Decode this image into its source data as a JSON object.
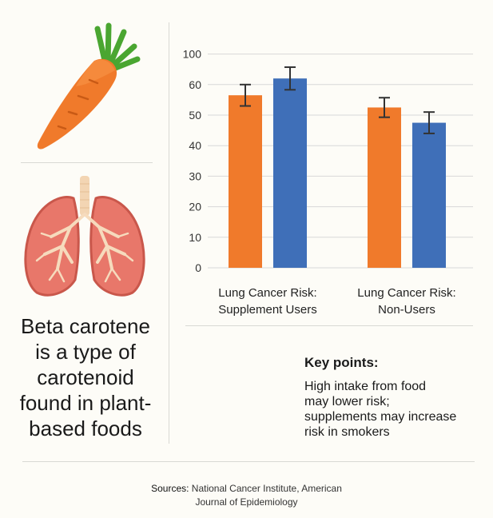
{
  "left_panel": {
    "icons": {
      "top": "carrot-icon",
      "middle": "lungs-icon"
    },
    "description_lines": [
      "Beta carotene",
      "is a type of",
      "carotenoid",
      "found in plant-",
      "based foods"
    ]
  },
  "chart_data": {
    "type": "bar",
    "categories": [
      "Lung Cancer Risk:\nSupplement Users",
      "Lung Cancer Risk:\nNon-Users"
    ],
    "series": [
      {
        "values": [
          56.5,
          52.5
        ],
        "errors": [
          3.5,
          3.2
        ],
        "color": "#f07a2b"
      },
      {
        "values": [
          62,
          47.5
        ],
        "errors": [
          3.7,
          3.5
        ],
        "color": "#3f6fb8"
      }
    ],
    "y_ticks": [
      0,
      10,
      20,
      30,
      40,
      50,
      60,
      100
    ],
    "ylim": [
      0,
      100
    ],
    "grid": true,
    "title": "",
    "xlabel": "",
    "ylabel": ""
  },
  "key_points": {
    "title": "Key points:",
    "body_lines": [
      "High intake from food",
      "may lower risk;",
      "supplements may increase",
      "risk in smokers"
    ]
  },
  "sources": {
    "label": "Sources:",
    "line1": "National Cancer Institute, American",
    "line2": "Journal of Epidemiology"
  }
}
